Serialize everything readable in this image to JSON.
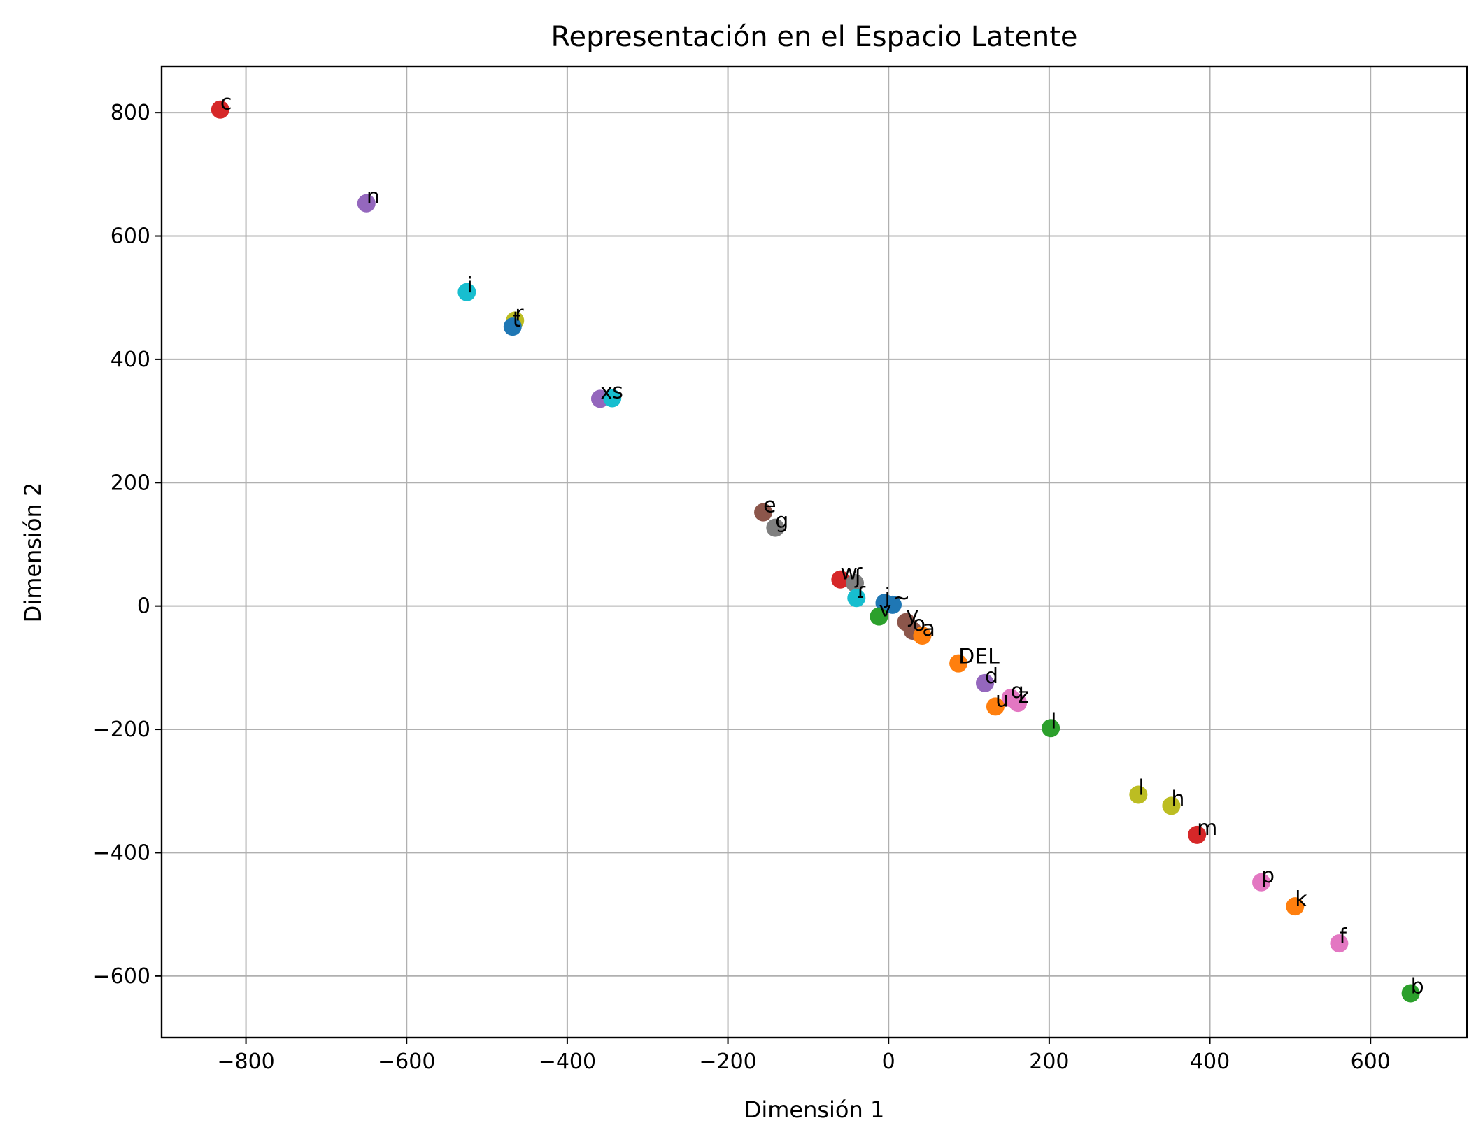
{
  "chart_data": {
    "type": "scatter",
    "title": "Representación en el Espacio Latente",
    "xlabel": "Dimensión 1",
    "ylabel": "Dimensión 2",
    "xlim": [
      -905,
      720
    ],
    "ylim": [
      -700,
      875
    ],
    "xticks": [
      -800,
      -600,
      -400,
      -200,
      0,
      200,
      400,
      600
    ],
    "yticks": [
      -600,
      -400,
      -200,
      0,
      200,
      400,
      600,
      800
    ],
    "xtick_labels": [
      "−800",
      "−600",
      "−400",
      "−200",
      "0",
      "200",
      "400",
      "600"
    ],
    "ytick_labels": [
      "−600",
      "−400",
      "−200",
      "0",
      "200",
      "400",
      "600",
      "800"
    ],
    "grid": true,
    "points": [
      {
        "label": "c",
        "x": -832,
        "y": 805,
        "color": "#d62728"
      },
      {
        "label": "n",
        "x": -650,
        "y": 653,
        "color": "#9467bd"
      },
      {
        "label": "i",
        "x": -525,
        "y": 509,
        "color": "#17becf"
      },
      {
        "label": "r",
        "x": -465,
        "y": 463,
        "color": "#bcbd22"
      },
      {
        "label": "t",
        "x": -468,
        "y": 453,
        "color": "#1f77b4"
      },
      {
        "label": "x",
        "x": -359,
        "y": 336,
        "color": "#9467bd"
      },
      {
        "label": "s",
        "x": -344,
        "y": 337,
        "color": "#17becf"
      },
      {
        "label": "e",
        "x": -156,
        "y": 152,
        "color": "#8c564b"
      },
      {
        "label": "g",
        "x": -141,
        "y": 127,
        "color": "#7f7f7f"
      },
      {
        "label": "w",
        "x": -60,
        "y": 43,
        "color": "#d62728"
      },
      {
        "label": "ʃ",
        "x": -42,
        "y": 37,
        "color": "#7f7f7f"
      },
      {
        "label": "ɾ",
        "x": -40,
        "y": 13,
        "color": "#17becf"
      },
      {
        "label": "j",
        "x": -5,
        "y": 5,
        "color": "#1f77b4"
      },
      {
        "label": "~",
        "x": 5,
        "y": 2,
        "color": "#1f77b4"
      },
      {
        "label": "v",
        "x": -12,
        "y": -17,
        "color": "#2ca02c"
      },
      {
        "label": "y",
        "x": 22,
        "y": -26,
        "color": "#8c564b"
      },
      {
        "label": "o",
        "x": 30,
        "y": -40,
        "color": "#8c564b"
      },
      {
        "label": "a",
        "x": 42,
        "y": -48,
        "color": "#ff7f0e"
      },
      {
        "label": "DEL",
        "x": 87,
        "y": -93,
        "color": "#ff7f0e"
      },
      {
        "label": "d",
        "x": 120,
        "y": -125,
        "color": "#9467bd"
      },
      {
        "label": "q",
        "x": 152,
        "y": -149,
        "color": "#e377c2"
      },
      {
        "label": "u",
        "x": 133,
        "y": -163,
        "color": "#ff7f0e"
      },
      {
        "label": "z",
        "x": 161,
        "y": -157,
        "color": "#e377c2"
      },
      {
        "label": "l",
        "x": 202,
        "y": -198,
        "color": "#2ca02c"
      },
      {
        "label": "l",
        "x": 311,
        "y": -306,
        "color": "#bcbd22"
      },
      {
        "label": "h",
        "x": 352,
        "y": -324,
        "color": "#bcbd22"
      },
      {
        "label": "m",
        "x": 384,
        "y": -371,
        "color": "#d62728"
      },
      {
        "label": "p",
        "x": 464,
        "y": -448,
        "color": "#e377c2"
      },
      {
        "label": "k",
        "x": 506,
        "y": -487,
        "color": "#ff7f0e"
      },
      {
        "label": "f",
        "x": 561,
        "y": -547,
        "color": "#e377c2"
      },
      {
        "label": "b",
        "x": 650,
        "y": -628,
        "color": "#2ca02c"
      }
    ]
  }
}
